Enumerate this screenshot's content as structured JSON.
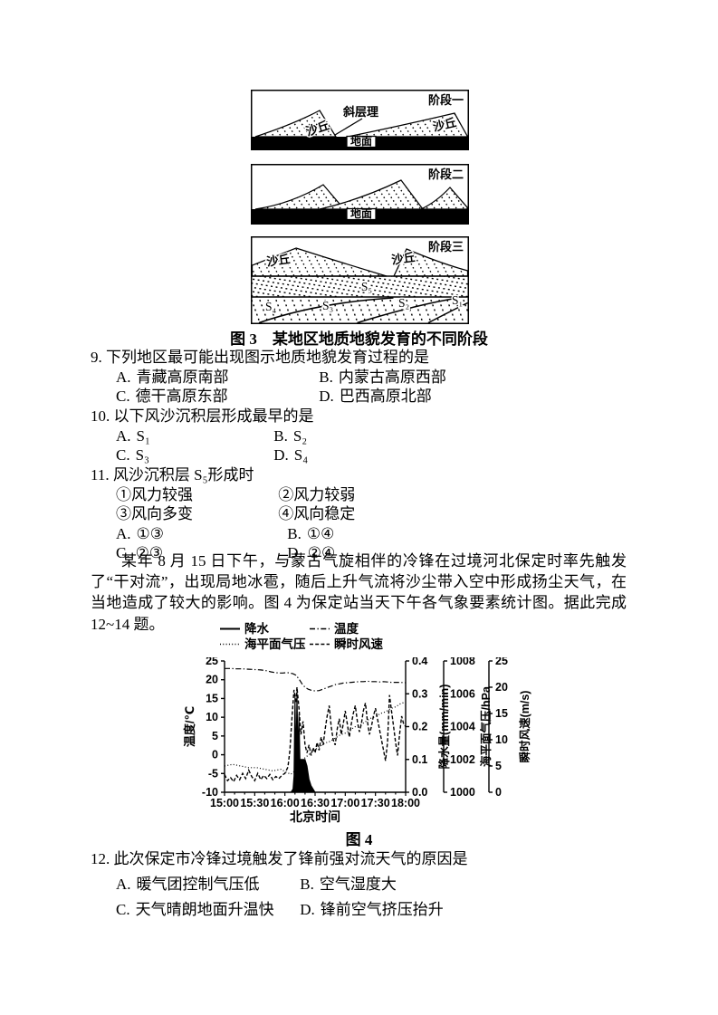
{
  "figure3": {
    "caption": "图 3　某地区地质地貌发育的不同阶段",
    "stage1": {
      "label": "阶段一",
      "bedding": "斜层理",
      "dune_left": "沙丘",
      "dune_right": "沙丘",
      "ground": "地面"
    },
    "stage2": {
      "label": "阶段二",
      "ground": "地面"
    },
    "stage3": {
      "label": "阶段三",
      "dune_left": "沙丘",
      "dune_right": "沙丘",
      "s5": "S₅",
      "s4": "S₄",
      "s3": "S₃",
      "s2": "S₂",
      "s1": "S₁"
    }
  },
  "q9": {
    "number": "9.",
    "text": "下列地区最可能出现图示地质地貌发育过程的是",
    "options": [
      {
        "key": "A.",
        "text": "青藏高原南部"
      },
      {
        "key": "B.",
        "text": "内蒙古高原西部"
      },
      {
        "key": "C.",
        "text": "德干高原东部"
      },
      {
        "key": "D.",
        "text": "巴西高原北部"
      }
    ]
  },
  "q10": {
    "number": "10.",
    "text": "以下风沙沉积层形成最早的是",
    "options": [
      {
        "key": "A.",
        "text": "S₁"
      },
      {
        "key": "B.",
        "text": "S₂"
      },
      {
        "key": "C.",
        "text": "S₃"
      },
      {
        "key": "D.",
        "text": "S₄"
      }
    ]
  },
  "q11": {
    "number": "11.",
    "text": "风沙沉积层 S₅形成时",
    "statements": [
      {
        "key": "①",
        "text": "风力较强"
      },
      {
        "key": "②",
        "text": "风力较弱"
      },
      {
        "key": "③",
        "text": "风向多变"
      },
      {
        "key": "④",
        "text": "风向稳定"
      }
    ],
    "options": [
      {
        "key": "A.",
        "text": "①③"
      },
      {
        "key": "B.",
        "text": "①④"
      },
      {
        "key": "C.",
        "text": "②③"
      },
      {
        "key": "D.",
        "text": "②④"
      }
    ]
  },
  "passage": "某年 8 月 15 日下午，与蒙古气旋相伴的冷锋在过境河北保定时率先触发了“干对流”，出现局地冰雹，随后上升气流将沙尘带入空中形成扬尘天气，在当地造成了较大的影响。图 4 为保定站当天下午各气象要素统计图。据此完成 12~14 题。",
  "q12": {
    "number": "12.",
    "text": "此次保定市冷锋过境触发了锋前强对流天气的原因是",
    "options": [
      {
        "key": "A.",
        "text": "暖气团控制气压低"
      },
      {
        "key": "B.",
        "text": "空气湿度大"
      },
      {
        "key": "C.",
        "text": "天气晴朗地面升温快"
      },
      {
        "key": "D.",
        "text": "锋前空气挤压抬升"
      }
    ]
  },
  "chart_data": {
    "type": "line",
    "caption": "图 4",
    "xlabel": "北京时间",
    "x_range_minutes": [
      0,
      180
    ],
    "x_ticks": [
      "15:00",
      "15:30",
      "16:00",
      "16:30",
      "17:00",
      "17:30",
      "18:00"
    ],
    "x_minor_step_minutes": 10,
    "grid": false,
    "legend_position": "top",
    "legend": [
      {
        "label": "降水",
        "line": "solid"
      },
      {
        "label": "温度",
        "line": "dashdot"
      },
      {
        "label": "海平面气压",
        "line": "dotted"
      },
      {
        "label": "瞬时风速",
        "line": "dashed"
      }
    ],
    "axes": {
      "temperature": {
        "label": "温度/℃",
        "side": "left",
        "range": [
          -10,
          25
        ],
        "ticks": [
          "-10",
          "-5",
          "0",
          "5",
          "10",
          "15",
          "20",
          "25"
        ]
      },
      "precipitation": {
        "label": "降水量(mm/min)",
        "side": "right",
        "range": [
          0,
          0.4
        ],
        "ticks": [
          "0.0",
          "0.1",
          "0.2",
          "0.3",
          "0.4"
        ]
      },
      "pressure": {
        "label": "海平面气压/hPa",
        "side": "right",
        "range": [
          1000,
          1008
        ],
        "ticks": [
          "1000",
          "1002",
          "1004",
          "1006",
          "1008"
        ]
      },
      "wind": {
        "label": "瞬时风速(m/s)",
        "side": "right",
        "range": [
          0,
          25
        ],
        "ticks": [
          "0",
          "5",
          "10",
          "15",
          "20",
          "25"
        ]
      }
    },
    "series": [
      {
        "name": "降水",
        "axis": "precipitation",
        "style": "solid",
        "fill": true,
        "points": [
          [
            0,
            0
          ],
          [
            66,
            0
          ],
          [
            68,
            0.01
          ],
          [
            69,
            0.05
          ],
          [
            70,
            0.3
          ],
          [
            71,
            0.1
          ],
          [
            72,
            0.31
          ],
          [
            73,
            0.12
          ],
          [
            74,
            0.24
          ],
          [
            75,
            0.1
          ],
          [
            76,
            0.1
          ],
          [
            78,
            0.1
          ],
          [
            80,
            0.1
          ],
          [
            82,
            0.08
          ],
          [
            84,
            0.04
          ],
          [
            86,
            0.02
          ],
          [
            88,
            0.01
          ],
          [
            90,
            0
          ],
          [
            180,
            0
          ]
        ]
      },
      {
        "name": "温度",
        "axis": "temperature",
        "style": "dashdot",
        "points": [
          [
            0,
            23
          ],
          [
            6,
            23
          ],
          [
            12,
            22.9
          ],
          [
            18,
            22.9
          ],
          [
            24,
            22.8
          ],
          [
            30,
            22.7
          ],
          [
            36,
            22.6
          ],
          [
            42,
            22.4
          ],
          [
            46,
            22.1
          ],
          [
            50,
            21.9
          ],
          [
            54,
            21.8
          ],
          [
            58,
            21.8
          ],
          [
            62,
            21.9
          ],
          [
            65,
            21.8
          ],
          [
            68,
            21.6
          ],
          [
            71,
            21.2
          ],
          [
            74,
            20.2
          ],
          [
            77,
            18.9
          ],
          [
            80,
            18.0
          ],
          [
            83,
            17.5
          ],
          [
            86,
            17.2
          ],
          [
            90,
            17.0
          ],
          [
            94,
            17.1
          ],
          [
            98,
            17.5
          ],
          [
            102,
            17.9
          ],
          [
            106,
            18.3
          ],
          [
            110,
            18.7
          ],
          [
            114,
            18.9
          ],
          [
            118,
            19.1
          ],
          [
            122,
            19.2
          ],
          [
            126,
            19.3
          ],
          [
            130,
            19.4
          ],
          [
            134,
            19.5
          ],
          [
            138,
            19.5
          ],
          [
            142,
            19.6
          ],
          [
            146,
            19.5
          ],
          [
            150,
            19.5
          ],
          [
            154,
            19.4
          ],
          [
            158,
            19.5
          ],
          [
            162,
            19.4
          ],
          [
            166,
            19.3
          ],
          [
            170,
            19.3
          ],
          [
            174,
            19.3
          ],
          [
            180,
            19.2
          ]
        ]
      },
      {
        "name": "海平面气压",
        "axis": "pressure",
        "style": "dotted",
        "points": [
          [
            0,
            1001.6
          ],
          [
            8,
            1001.7
          ],
          [
            16,
            1001.6
          ],
          [
            24,
            1001.5
          ],
          [
            32,
            1001.5
          ],
          [
            40,
            1001.4
          ],
          [
            48,
            1001.3
          ],
          [
            56,
            1001.4
          ],
          [
            62,
            1001.2
          ],
          [
            66,
            1001.1
          ],
          [
            70,
            1001.3
          ],
          [
            74,
            1001.7
          ],
          [
            78,
            1002.0
          ],
          [
            82,
            1002.2
          ],
          [
            86,
            1002.4
          ],
          [
            90,
            1002.6
          ],
          [
            95,
            1002.8
          ],
          [
            100,
            1003.0
          ],
          [
            105,
            1003.1
          ],
          [
            110,
            1003.3
          ],
          [
            115,
            1003.5
          ],
          [
            120,
            1003.6
          ],
          [
            125,
            1003.8
          ],
          [
            130,
            1004.0
          ],
          [
            135,
            1004.1
          ],
          [
            140,
            1004.3
          ],
          [
            145,
            1004.5
          ],
          [
            150,
            1004.6
          ],
          [
            155,
            1004.8
          ],
          [
            160,
            1004.9
          ],
          [
            165,
            1005.1
          ],
          [
            170,
            1005.2
          ],
          [
            175,
            1005.4
          ],
          [
            180,
            1005.5
          ]
        ]
      },
      {
        "name": "瞬时风速",
        "axis": "wind",
        "style": "dashed",
        "points": [
          [
            0,
            3.4
          ],
          [
            3,
            2.2
          ],
          [
            6,
            2.8
          ],
          [
            9,
            2.0
          ],
          [
            12,
            3.2
          ],
          [
            15,
            2.4
          ],
          [
            18,
            3.6
          ],
          [
            21,
            2.6
          ],
          [
            24,
            4.2
          ],
          [
            27,
            3.0
          ],
          [
            30,
            2.2
          ],
          [
            33,
            3.6
          ],
          [
            36,
            2.4
          ],
          [
            39,
            3.2
          ],
          [
            42,
            2.6
          ],
          [
            45,
            3.4
          ],
          [
            48,
            2.4
          ],
          [
            51,
            3.0
          ],
          [
            54,
            2.6
          ],
          [
            57,
            3.2
          ],
          [
            60,
            3.6
          ],
          [
            63,
            4.8
          ],
          [
            65,
            8.0
          ],
          [
            67,
            14.0
          ],
          [
            69,
            19.5
          ],
          [
            71,
            17.0
          ],
          [
            72,
            20.0
          ],
          [
            74,
            16.0
          ],
          [
            76,
            11.0
          ],
          [
            78,
            13.5
          ],
          [
            80,
            9.0
          ],
          [
            82,
            7.5
          ],
          [
            84,
            9.0
          ],
          [
            86,
            7.0
          ],
          [
            88,
            8.5
          ],
          [
            90,
            7.5
          ],
          [
            92,
            9.5
          ],
          [
            94,
            8.0
          ],
          [
            96,
            10.5
          ],
          [
            98,
            9.0
          ],
          [
            100,
            12.0
          ],
          [
            102,
            14.5
          ],
          [
            104,
            16.5
          ],
          [
            106,
            12.5
          ],
          [
            108,
            10.0
          ],
          [
            110,
            9.0
          ],
          [
            112,
            12.0
          ],
          [
            114,
            14.0
          ],
          [
            116,
            11.0
          ],
          [
            118,
            13.0
          ],
          [
            120,
            15.5
          ],
          [
            122,
            13.0
          ],
          [
            124,
            10.5
          ],
          [
            126,
            13.0
          ],
          [
            128,
            15.0
          ],
          [
            130,
            16.5
          ],
          [
            132,
            13.5
          ],
          [
            134,
            11.5
          ],
          [
            136,
            13.0
          ],
          [
            138,
            15.5
          ],
          [
            140,
            17.0
          ],
          [
            142,
            13.5
          ],
          [
            144,
            11.0
          ],
          [
            146,
            12.5
          ],
          [
            148,
            14.5
          ],
          [
            150,
            16.0
          ],
          [
            152,
            14.0
          ],
          [
            154,
            12.0
          ],
          [
            156,
            10.0
          ],
          [
            158,
            8.0
          ],
          [
            160,
            6.0
          ],
          [
            162,
            9.5
          ],
          [
            164,
            18.5
          ],
          [
            166,
            15.5
          ],
          [
            168,
            12.5
          ],
          [
            170,
            9.5
          ],
          [
            172,
            7.0
          ],
          [
            174,
            11.0
          ],
          [
            176,
            14.5
          ],
          [
            178,
            13.0
          ],
          [
            180,
            12.5
          ]
        ]
      }
    ]
  }
}
